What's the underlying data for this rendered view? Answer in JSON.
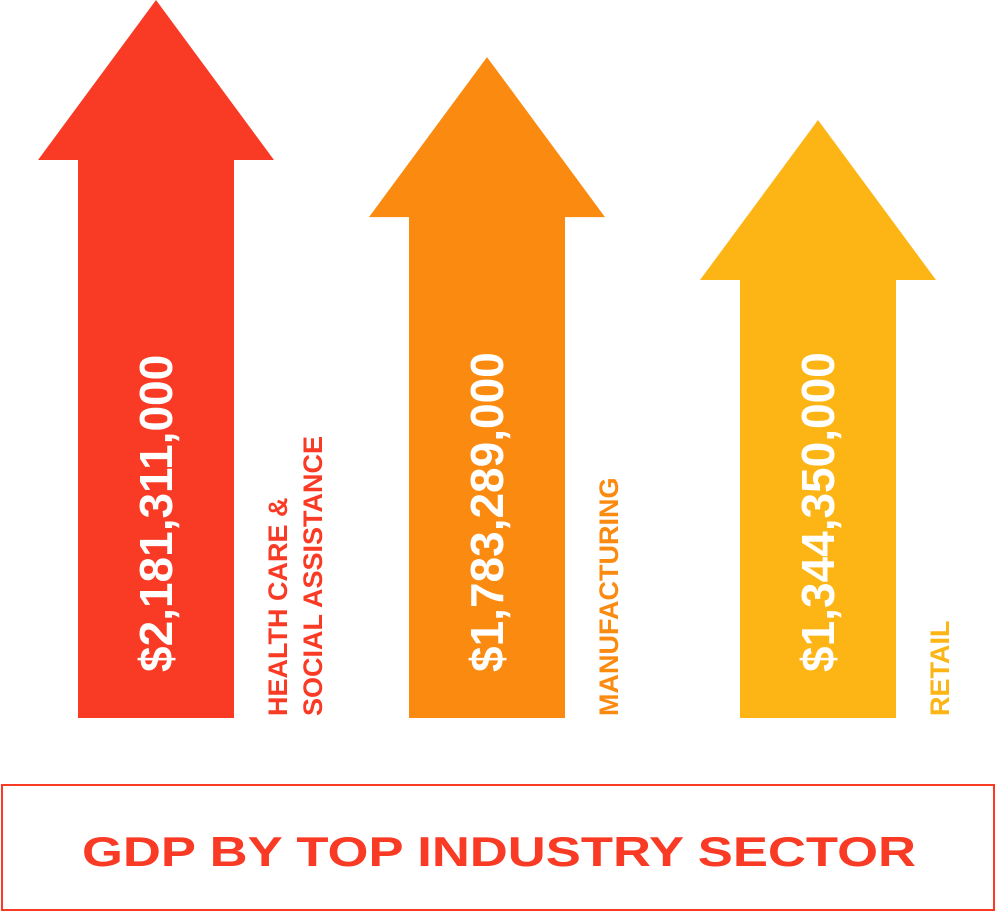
{
  "chart_data": {
    "type": "bar",
    "title": "GDP BY TOP INDUSTRY SECTOR",
    "categories": [
      [
        "HEALTH CARE &",
        "SOCIAL ASSISTANCE"
      ],
      [
        "MANUFACTURING"
      ],
      [
        "RETAIL"
      ]
    ],
    "values": [
      2181311000,
      1783289000,
      1344350000
    ],
    "value_labels": [
      "$2,181,311,000",
      "$1,783,289,000",
      "$1,344,350,000"
    ],
    "colors": [
      "#F93A24",
      "#FB8A10",
      "#FDB515"
    ],
    "title_color": "#F93A24",
    "xlabel": "",
    "ylabel": ""
  }
}
